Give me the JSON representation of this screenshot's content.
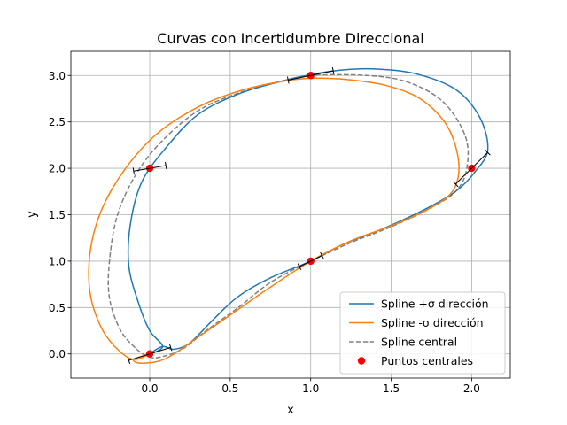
{
  "chart_data": {
    "type": "line",
    "title": "Curvas con Incertidumbre Direccional",
    "xlabel": "x",
    "ylabel": "y",
    "xlim": [
      -0.49,
      2.24
    ],
    "ylim": [
      -0.26,
      3.26
    ],
    "xticks": [
      0.0,
      0.5,
      1.0,
      1.5,
      2.0
    ],
    "xtick_labels": [
      "0.0",
      "0.5",
      "1.0",
      "1.5",
      "2.0"
    ],
    "yticks": [
      0.0,
      0.5,
      1.0,
      1.5,
      2.0,
      2.5,
      3.0
    ],
    "ytick_labels": [
      "0.0",
      "0.5",
      "1.0",
      "1.5",
      "2.0",
      "2.5",
      "3.0"
    ],
    "grid": true,
    "legend_position": "bottom-right",
    "series": [
      {
        "name": "Spline +σ dirección",
        "style": "solid",
        "color": "#1f77b4",
        "points": [
          [
            0.0,
            0.0
          ],
          [
            0.08,
            0.08
          ],
          [
            0.15,
            0.05
          ],
          [
            0.25,
            0.12
          ],
          [
            0.4,
            0.38
          ],
          [
            0.55,
            0.62
          ],
          [
            0.75,
            0.82
          ],
          [
            1.0,
            1.0
          ],
          [
            1.2,
            1.18
          ],
          [
            1.45,
            1.35
          ],
          [
            1.7,
            1.55
          ],
          [
            1.9,
            1.75
          ],
          [
            2.02,
            1.96
          ],
          [
            2.1,
            2.2
          ],
          [
            2.05,
            2.55
          ],
          [
            1.9,
            2.85
          ],
          [
            1.65,
            3.02
          ],
          [
            1.4,
            3.07
          ],
          [
            1.2,
            3.06
          ],
          [
            1.0,
            3.01
          ],
          [
            0.8,
            2.93
          ],
          [
            0.55,
            2.8
          ],
          [
            0.3,
            2.58
          ],
          [
            0.1,
            2.22
          ],
          [
            -0.05,
            1.85
          ],
          [
            -0.12,
            1.4
          ],
          [
            -0.13,
            0.95
          ],
          [
            -0.07,
            0.55
          ],
          [
            0.0,
            0.25
          ],
          [
            0.08,
            0.08
          ]
        ]
      },
      {
        "name": "Spline -σ dirección",
        "style": "solid",
        "color": "#ff7f0e",
        "points": [
          [
            0.0,
            0.0
          ],
          [
            -0.1,
            -0.06
          ],
          [
            -0.05,
            -0.1
          ],
          [
            0.1,
            -0.05
          ],
          [
            0.3,
            0.18
          ],
          [
            0.5,
            0.42
          ],
          [
            0.75,
            0.72
          ],
          [
            1.0,
            1.0
          ],
          [
            1.25,
            1.22
          ],
          [
            1.5,
            1.38
          ],
          [
            1.72,
            1.55
          ],
          [
            1.88,
            1.75
          ],
          [
            1.92,
            2.05
          ],
          [
            1.85,
            2.45
          ],
          [
            1.68,
            2.75
          ],
          [
            1.45,
            2.9
          ],
          [
            1.2,
            2.96
          ],
          [
            1.0,
            2.97
          ],
          [
            0.8,
            2.93
          ],
          [
            0.55,
            2.83
          ],
          [
            0.3,
            2.66
          ],
          [
            0.05,
            2.38
          ],
          [
            -0.15,
            2.0
          ],
          [
            -0.3,
            1.55
          ],
          [
            -0.37,
            1.1
          ],
          [
            -0.37,
            0.65
          ],
          [
            -0.3,
            0.28
          ],
          [
            -0.2,
            0.05
          ],
          [
            -0.1,
            -0.06
          ]
        ]
      },
      {
        "name": "Spline central",
        "style": "dashed",
        "color": "#808080",
        "points": [
          [
            0.0,
            0.0
          ],
          [
            -0.02,
            -0.02
          ],
          [
            0.05,
            -0.04
          ],
          [
            0.2,
            0.05
          ],
          [
            0.35,
            0.25
          ],
          [
            0.55,
            0.5
          ],
          [
            0.75,
            0.77
          ],
          [
            1.0,
            1.0
          ],
          [
            1.25,
            1.2
          ],
          [
            1.5,
            1.37
          ],
          [
            1.72,
            1.55
          ],
          [
            1.9,
            1.75
          ],
          [
            1.97,
            2.0
          ],
          [
            1.96,
            2.35
          ],
          [
            1.82,
            2.72
          ],
          [
            1.6,
            2.93
          ],
          [
            1.35,
            3.0
          ],
          [
            1.0,
            3.0
          ],
          [
            0.8,
            2.93
          ],
          [
            0.55,
            2.81
          ],
          [
            0.3,
            2.62
          ],
          [
            0.08,
            2.3
          ],
          [
            -0.08,
            1.95
          ],
          [
            -0.2,
            1.5
          ],
          [
            -0.25,
            1.0
          ],
          [
            -0.25,
            0.6
          ],
          [
            -0.18,
            0.25
          ],
          [
            -0.08,
            0.05
          ],
          [
            -0.02,
            -0.02
          ]
        ]
      },
      {
        "name": "Puntos centrales",
        "style": "scatter",
        "color": "#ff0000",
        "x": [
          0.0,
          0.0,
          1.0,
          1.0,
          2.0
        ],
        "y": [
          0.0,
          2.0,
          3.0,
          1.0,
          2.0
        ]
      }
    ],
    "direction_markers": [
      {
        "center": [
          0.0,
          0.0
        ],
        "from": [
          -0.13,
          -0.07
        ],
        "to": [
          0.13,
          0.07
        ]
      },
      {
        "center": [
          0.0,
          2.0
        ],
        "from": [
          -0.1,
          1.97
        ],
        "to": [
          0.1,
          2.03
        ]
      },
      {
        "center": [
          1.0,
          3.0
        ],
        "from": [
          0.86,
          2.95
        ],
        "to": [
          1.14,
          3.05
        ]
      },
      {
        "center": [
          1.0,
          1.0
        ],
        "from": [
          0.93,
          0.94
        ],
        "to": [
          1.07,
          1.06
        ]
      },
      {
        "center": [
          2.0,
          2.0
        ],
        "from": [
          1.9,
          1.83
        ],
        "to": [
          2.1,
          2.17
        ]
      }
    ]
  }
}
